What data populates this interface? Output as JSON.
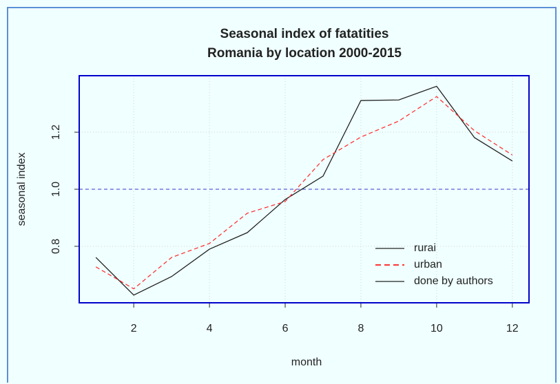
{
  "chart_data": {
    "type": "line",
    "title": "Seasonal index of fatatities",
    "subtitle": "Romania by location 2000-2015",
    "x_label": "month",
    "y_label": "seasonal index",
    "x": [
      1,
      2,
      3,
      4,
      5,
      6,
      7,
      8,
      9,
      10,
      11,
      12
    ],
    "series": [
      {
        "name": "rurai",
        "color": "#222222",
        "dash": false,
        "values": [
          0.761,
          0.629,
          0.694,
          0.79,
          0.848,
          0.964,
          1.046,
          1.311,
          1.313,
          1.361,
          1.181,
          1.099
        ]
      },
      {
        "name": "urban",
        "color": "#ff3333",
        "dash": true,
        "values": [
          0.728,
          0.651,
          0.761,
          0.81,
          0.916,
          0.957,
          1.104,
          1.183,
          1.239,
          1.325,
          1.205,
          1.12
        ]
      }
    ],
    "legend_extra": [
      {
        "name": "done by authors",
        "color": "#222222"
      }
    ],
    "legend_position": "bottomright",
    "reference_line": {
      "value": 1.0,
      "color": "#3333cc"
    },
    "xlim": [
      0.56,
      12.44
    ],
    "ylim": [
      0.602,
      1.398
    ],
    "xticks": [
      2,
      4,
      6,
      8,
      10,
      12
    ],
    "yticks": [
      {
        "value": 0.8,
        "label": "0.8"
      },
      {
        "value": 1.0,
        "label": "1.0"
      },
      {
        "value": 1.2,
        "label": "1.2"
      }
    ],
    "grid": true,
    "frame_color": "#0000cc"
  }
}
